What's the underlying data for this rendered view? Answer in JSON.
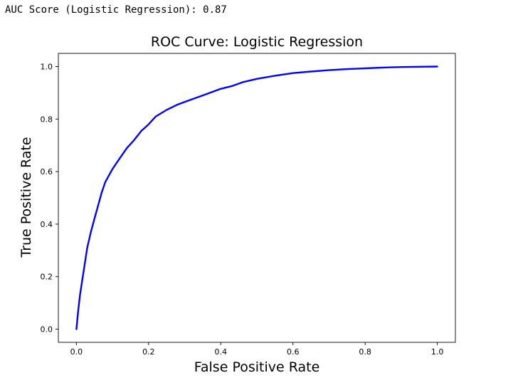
{
  "output": {
    "text": "AUC Score (Logistic Regression): 0.87"
  },
  "chart_data": {
    "type": "line",
    "title": "ROC Curve: Logistic Regression",
    "xlabel": "False Positive Rate",
    "ylabel": "True Positive Rate",
    "xlim": [
      -0.05,
      1.05
    ],
    "ylim": [
      -0.05,
      1.05
    ],
    "xticks": [
      "0.0",
      "0.2",
      "0.4",
      "0.6",
      "0.8",
      "1.0"
    ],
    "yticks": [
      "0.0",
      "0.2",
      "0.4",
      "0.6",
      "0.8",
      "1.0"
    ],
    "grid": false,
    "line_color": "#0000ff",
    "series": [
      {
        "x": [
          0.0,
          0.005,
          0.01,
          0.02,
          0.03,
          0.04,
          0.05,
          0.06,
          0.07,
          0.08,
          0.1,
          0.12,
          0.14,
          0.16,
          0.18,
          0.2,
          0.22,
          0.25,
          0.28,
          0.3,
          0.33,
          0.36,
          0.38,
          0.4,
          0.43,
          0.46,
          0.5,
          0.55,
          0.6,
          0.65,
          0.7,
          0.75,
          0.8,
          0.85,
          0.9,
          0.95,
          1.0
        ],
        "y": [
          0.0,
          0.07,
          0.13,
          0.22,
          0.31,
          0.37,
          0.42,
          0.47,
          0.52,
          0.56,
          0.61,
          0.65,
          0.69,
          0.72,
          0.755,
          0.78,
          0.81,
          0.835,
          0.855,
          0.865,
          0.88,
          0.895,
          0.905,
          0.915,
          0.925,
          0.94,
          0.953,
          0.965,
          0.975,
          0.981,
          0.986,
          0.99,
          0.993,
          0.996,
          0.998,
          0.999,
          1.0
        ]
      }
    ]
  }
}
